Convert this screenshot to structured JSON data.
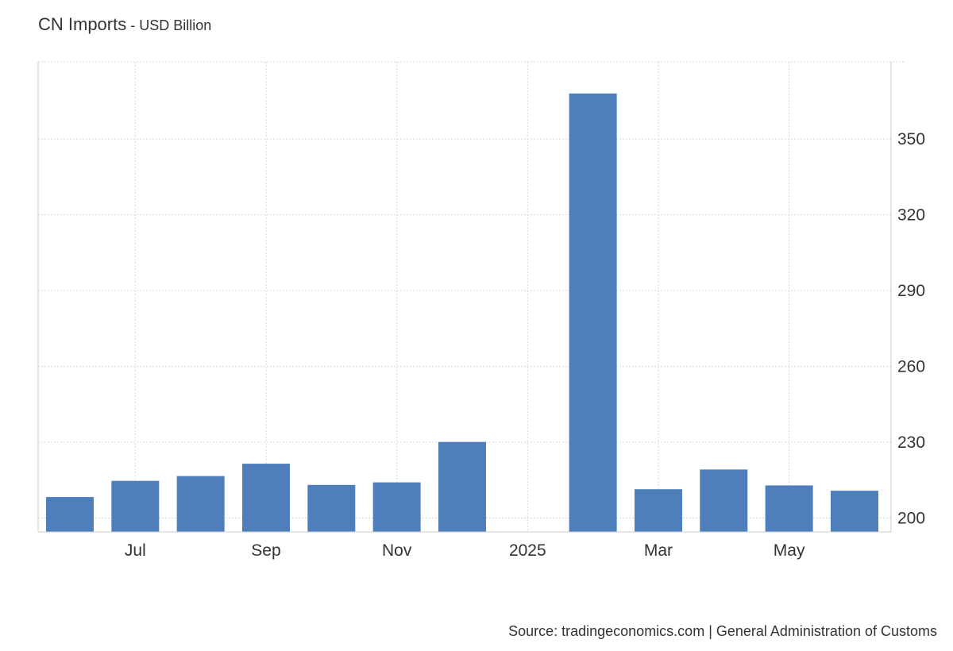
{
  "header": {
    "title": "CN Imports",
    "subtitle_sep": " - ",
    "subtitle": "USD Billion"
  },
  "footer": {
    "source": "Source: tradingeconomics.com | General Administration of Customs"
  },
  "colors": {
    "bar": "#4e7fbb",
    "grid": "#d9d9d9",
    "axis": "#cccccc",
    "text": "#333333"
  },
  "chart_data": {
    "type": "bar",
    "categories": [
      "Jun 2024",
      "Jul 2024",
      "Aug 2024",
      "Sep 2024",
      "Oct 2024",
      "Nov 2024",
      "Dec 2024",
      "Jan 2025",
      "Feb 2025",
      "Mar 2025",
      "Apr 2025",
      "May 2025",
      "Jun 2025"
    ],
    "values": [
      208.3,
      214.7,
      216.6,
      221.5,
      213.1,
      214.1,
      230.1,
      null,
      368.0,
      211.4,
      219.2,
      212.9,
      210.8
    ],
    "x_tick_labels": [
      {
        "label": "Jul",
        "category": "Jul 2024"
      },
      {
        "label": "Sep",
        "category": "Sep 2024"
      },
      {
        "label": "Nov",
        "category": "Nov 2024"
      },
      {
        "label": "2025",
        "category": "Jan 2025"
      },
      {
        "label": "Mar",
        "category": "Mar 2025"
      },
      {
        "label": "May",
        "category": "May 2025"
      }
    ],
    "y_ticks": [
      200,
      230,
      260,
      290,
      320,
      350
    ],
    "ylim": [
      194.5,
      380.5
    ],
    "y_axis_side": "right",
    "grid": true,
    "legend": "none",
    "title": "CN Imports",
    "ylabel": "",
    "xlabel": ""
  }
}
